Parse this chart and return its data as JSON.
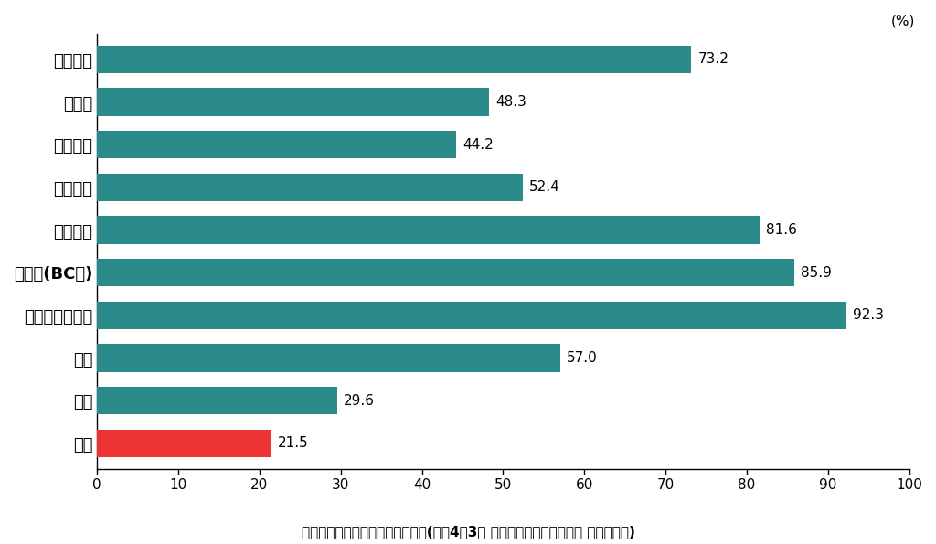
{
  "categories": [
    "イギリス",
    "ドイツ",
    "フランス",
    "イタリア",
    "アメリカ",
    "カナダ(BC州)",
    "オーストラリア",
    "香港",
    "韓国",
    "日本"
  ],
  "values": [
    73.2,
    48.3,
    44.2,
    52.4,
    81.6,
    85.9,
    92.3,
    57.0,
    29.6,
    21.5
  ],
  "bar_colors": [
    "#2b8b8b",
    "#2b8b8b",
    "#2b8b8b",
    "#2b8b8b",
    "#2b8b8b",
    "#2b8b8b",
    "#2b8b8b",
    "#2b8b8b",
    "#2b8b8b",
    "#ee3333"
  ],
  "xlim": [
    0,
    100
  ],
  "xticks": [
    0,
    10,
    20,
    30,
    40,
    50,
    60,
    70,
    80,
    90,
    100
  ],
  "xlabel_note": "(%)",
  "source_text": "出典：社会的養育の推進に向けて(令和4年3月 厘生労働省子ども家庭局 家庭福祉課)",
  "background_color": "#ffffff",
  "bar_height": 0.65,
  "value_fontsize": 11,
  "label_fontsize": 13,
  "tick_fontsize": 11,
  "source_fontsize": 11
}
